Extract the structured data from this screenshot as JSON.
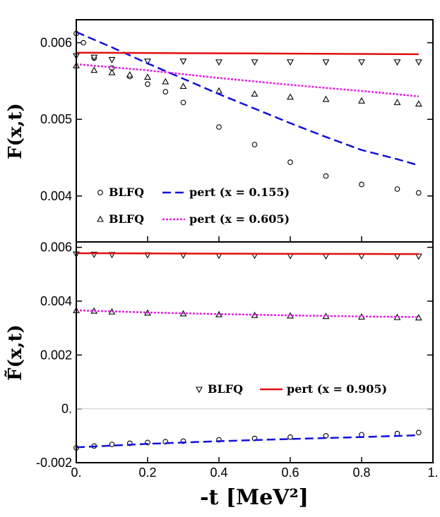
{
  "chart_data": [
    {
      "type": "scatter",
      "panel": "top",
      "ylabel": "F(x,t)",
      "xlim": [
        0,
        1
      ],
      "ylim": [
        0.0034,
        0.0063
      ],
      "yticks": [
        0.004,
        0.005,
        0.006
      ],
      "ytick_labels": [
        "0.004",
        "0.005",
        "0.006"
      ],
      "legend": [
        {
          "marker": "circle",
          "text": "BLFQ"
        },
        {
          "line": "dashed-blue",
          "text": "pert (x = 0.155)"
        },
        {
          "marker": "triangle-up",
          "text": "BLFQ"
        },
        {
          "line": "dotted-magenta",
          "text": "pert (x = 0.605)"
        }
      ],
      "series": [
        {
          "name": "BLFQ",
          "x_value": 0.155,
          "marker": "circle",
          "color": "#000000",
          "x": [
            0.0,
            0.02,
            0.05,
            0.1,
            0.15,
            0.2,
            0.25,
            0.3,
            0.4,
            0.5,
            0.6,
            0.7,
            0.8,
            0.9,
            0.96
          ],
          "y": [
            0.00612,
            0.006,
            0.0058,
            0.00567,
            0.00556,
            0.00546,
            0.00536,
            0.00522,
            0.0049,
            0.00467,
            0.00444,
            0.00426,
            0.00415,
            0.00409,
            0.00404
          ]
        },
        {
          "name": "BLFQ",
          "x_value": 0.605,
          "marker": "triangle-up",
          "color": "#000000",
          "x": [
            0.0,
            0.05,
            0.1,
            0.15,
            0.2,
            0.25,
            0.3,
            0.4,
            0.5,
            0.6,
            0.7,
            0.8,
            0.9,
            0.96
          ],
          "y": [
            0.0057,
            0.00564,
            0.00561,
            0.00558,
            0.00555,
            0.00549,
            0.00543,
            0.00537,
            0.00533,
            0.00529,
            0.00526,
            0.00524,
            0.00522,
            0.0052
          ]
        },
        {
          "name": "BLFQ",
          "x_value": 0.905,
          "marker": "triangle-down",
          "color": "#000000",
          "x": [
            0.0,
            0.05,
            0.1,
            0.2,
            0.3,
            0.4,
            0.5,
            0.6,
            0.7,
            0.8,
            0.9,
            0.96
          ],
          "y": [
            0.00583,
            0.00581,
            0.00578,
            0.00576,
            0.00576,
            0.00575,
            0.00575,
            0.00575,
            0.00575,
            0.00575,
            0.00575,
            0.00575
          ]
        },
        {
          "name": "pert",
          "x_value": 0.155,
          "line": "dashed",
          "color": "#1010e0",
          "x": [
            0.0,
            0.1,
            0.2,
            0.3,
            0.4,
            0.5,
            0.6,
            0.7,
            0.8,
            0.9,
            0.96
          ],
          "y": [
            0.00614,
            0.00594,
            0.00573,
            0.00553,
            0.00533,
            0.00514,
            0.00495,
            0.00477,
            0.0046,
            0.00448,
            0.0044
          ]
        },
        {
          "name": "pert",
          "x_value": 0.605,
          "line": "dotted",
          "color": "#e020e0",
          "x": [
            0.0,
            0.2,
            0.4,
            0.6,
            0.8,
            0.96
          ],
          "y": [
            0.00572,
            0.00564,
            0.00554,
            0.00545,
            0.00537,
            0.0053
          ]
        },
        {
          "name": "pert",
          "x_value": 0.905,
          "line": "solid",
          "color": "#e01010",
          "x": [
            0.0,
            0.5,
            0.96
          ],
          "y": [
            0.00587,
            0.00586,
            0.00585
          ]
        }
      ]
    },
    {
      "type": "scatter",
      "panel": "bottom",
      "xlabel": "-t [MeV²]",
      "ylabel": "F̃(x,t)",
      "xlim": [
        0,
        1
      ],
      "ylim": [
        -0.002,
        0.0062
      ],
      "xticks": [
        0,
        0.2,
        0.4,
        0.6,
        0.8,
        1
      ],
      "xtick_labels": [
        "0.",
        "0.2",
        "0.4",
        "0.6",
        "0.8",
        "1."
      ],
      "yticks": [
        -0.002,
        0,
        0.002,
        0.004,
        0.006
      ],
      "ytick_labels": [
        "-0.002",
        "0.",
        "0.002",
        "0.004",
        "0.006"
      ],
      "legend": [
        {
          "marker": "triangle-down",
          "text": "BLFQ"
        },
        {
          "line": "solid-red",
          "text": "pert (x = 0.905)"
        }
      ],
      "series": [
        {
          "name": "BLFQ",
          "x_value": 0.905,
          "marker": "triangle-down",
          "color": "#000000",
          "x": [
            0.0,
            0.05,
            0.1,
            0.2,
            0.3,
            0.4,
            0.5,
            0.6,
            0.7,
            0.8,
            0.9,
            0.96
          ],
          "y": [
            0.00575,
            0.00574,
            0.00573,
            0.00572,
            0.00571,
            0.0057,
            0.0057,
            0.00569,
            0.00568,
            0.00568,
            0.00567,
            0.00567
          ]
        },
        {
          "name": "BLFQ",
          "x_value": 0.605,
          "marker": "triangle-up",
          "color": "#000000",
          "x": [
            0.0,
            0.05,
            0.1,
            0.2,
            0.3,
            0.4,
            0.5,
            0.6,
            0.7,
            0.8,
            0.9,
            0.96
          ],
          "y": [
            0.00365,
            0.00363,
            0.0036,
            0.00356,
            0.00353,
            0.0035,
            0.00347,
            0.00345,
            0.00343,
            0.00341,
            0.00339,
            0.00338
          ]
        },
        {
          "name": "BLFQ",
          "x_value": 0.155,
          "marker": "circle",
          "color": "#000000",
          "x": [
            0.0,
            0.05,
            0.1,
            0.15,
            0.2,
            0.25,
            0.3,
            0.4,
            0.5,
            0.6,
            0.7,
            0.8,
            0.9,
            0.96
          ],
          "y": [
            -0.00145,
            -0.00138,
            -0.00132,
            -0.00128,
            -0.00125,
            -0.00122,
            -0.0012,
            -0.00115,
            -0.0011,
            -0.00105,
            -0.001,
            -0.00096,
            -0.00092,
            -0.00088
          ]
        },
        {
          "name": "pert",
          "x_value": 0.905,
          "line": "solid",
          "color": "#e01010",
          "x": [
            0.0,
            0.5,
            0.96
          ],
          "y": [
            0.00578,
            0.00576,
            0.00575
          ]
        },
        {
          "name": "pert",
          "x_value": 0.605,
          "line": "dotted",
          "color": "#e020e0",
          "x": [
            0.0,
            0.2,
            0.4,
            0.6,
            0.8,
            0.96
          ],
          "y": [
            0.00366,
            0.00358,
            0.00352,
            0.00347,
            0.00343,
            0.00341
          ]
        },
        {
          "name": "pert",
          "x_value": 0.155,
          "line": "dashed",
          "color": "#1010e0",
          "x": [
            0.0,
            0.2,
            0.4,
            0.6,
            0.8,
            0.96
          ],
          "y": [
            -0.00143,
            -0.0013,
            -0.0012,
            -0.00112,
            -0.00105,
            -0.00098
          ]
        }
      ]
    }
  ]
}
